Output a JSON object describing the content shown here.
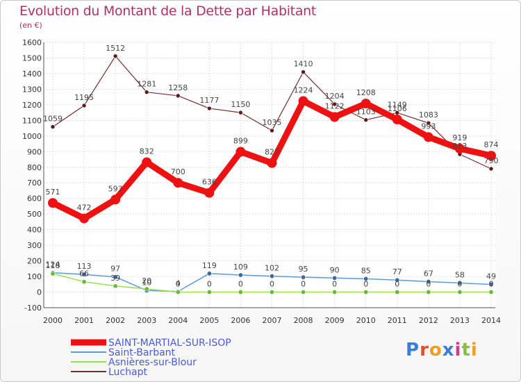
{
  "header": {
    "title": "Evolution du Montant de la Dette par Habitant",
    "subtitle": "(en €)"
  },
  "logo": {
    "text": "Proxiti"
  },
  "colors": {
    "title": "#b0306a",
    "saint_martial": "#ee1111",
    "saint_barbant": "#5b9bd5",
    "asnieres": "#99dd55",
    "luchapt": "#7a2a2a",
    "legend_text": "#4a5ad8"
  },
  "chart_data": {
    "type": "line",
    "x": [
      "2000",
      "2001",
      "2002",
      "2003",
      "2004",
      "2005",
      "2006",
      "2007",
      "2008",
      "2009",
      "2010",
      "2011",
      "2012",
      "2013",
      "2014"
    ],
    "ylim": [
      -100,
      1600
    ],
    "yticks": [
      -100,
      0,
      100,
      200,
      300,
      400,
      500,
      600,
      700,
      800,
      900,
      1000,
      1100,
      1200,
      1300,
      1400,
      1500,
      1600
    ],
    "grid": true,
    "legend_position": "bottom-left",
    "series": [
      {
        "name": "SAINT-MARTIAL-SUR-ISOP",
        "color": "#ee1111",
        "values": [
          571,
          472,
          593,
          832,
          700,
          636,
          899,
          827,
          1224,
          1122,
          1208,
          1106,
          993,
          919,
          874
        ]
      },
      {
        "name": "Saint-Barbant",
        "color": "#5b9bd5",
        "values": [
          124,
          113,
          97,
          10,
          4,
          119,
          109,
          102,
          95,
          90,
          85,
          77,
          67,
          58,
          49
        ]
      },
      {
        "name": "Asnières-sur-Blour",
        "color": "#99dd55",
        "values": [
          118,
          66,
          39,
          20,
          0,
          0,
          0,
          0,
          0,
          0,
          0,
          0,
          0,
          0,
          0
        ]
      },
      {
        "name": "Luchapt",
        "color": "#7a2a2a",
        "values": [
          1059,
          1195,
          1512,
          1281,
          1258,
          1177,
          1150,
          1035,
          1410,
          1204,
          1103,
          1149,
          1083,
          883,
          790
        ]
      }
    ]
  }
}
